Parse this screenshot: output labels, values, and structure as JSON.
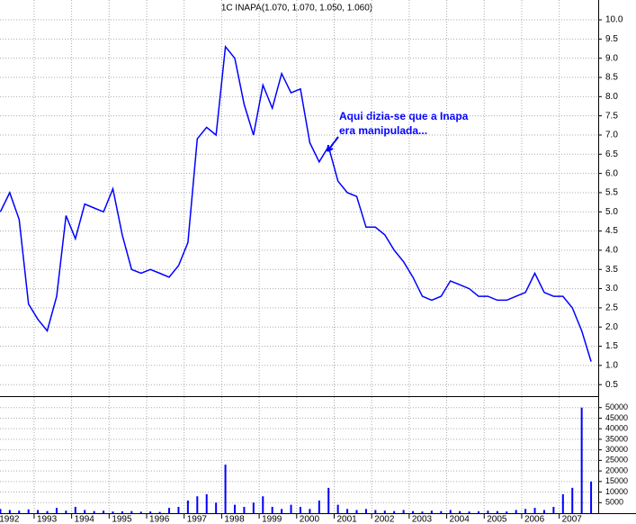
{
  "chart_data": [
    {
      "type": "line",
      "title": "1C INAPA(1.070, 1.070, 1.050, 1.060)",
      "annotation": [
        "Aqui dizia-se que a Inapa",
        "era manipulada..."
      ],
      "annotation_color": "#0000ff",
      "grid": true,
      "xlim": [
        1992.09,
        2008.04
      ],
      "xticks": [
        1992,
        1993,
        1994,
        1995,
        1996,
        1997,
        1998,
        1999,
        2000,
        2001,
        2002,
        2003,
        2004,
        2005,
        2006,
        2007
      ],
      "ylim": [
        0.2,
        10.5
      ],
      "yticks": [
        {
          "value": 0.5,
          "label": "0.5"
        },
        {
          "value": 1,
          "label": "1.0"
        },
        {
          "value": 1.5,
          "label": "1.5"
        },
        {
          "value": 2,
          "label": "2.0"
        },
        {
          "value": 2.5,
          "label": "2.5"
        },
        {
          "value": 3,
          "label": "3.0"
        },
        {
          "value": 3.5,
          "label": "3.5"
        },
        {
          "value": 4,
          "label": "4.0"
        },
        {
          "value": 4.5,
          "label": "4.5"
        },
        {
          "value": 5,
          "label": "5.0"
        },
        {
          "value": 5.5,
          "label": "5.5"
        },
        {
          "value": 6,
          "label": "6.0"
        },
        {
          "value": 6.5,
          "label": "6.5"
        },
        {
          "value": 7,
          "label": "7.0"
        },
        {
          "value": 7.5,
          "label": "7.5"
        },
        {
          "value": 8,
          "label": "8.0"
        },
        {
          "value": 8.5,
          "label": "8.5"
        },
        {
          "value": 9,
          "label": "9.0"
        },
        {
          "value": 9.5,
          "label": "9.5"
        },
        {
          "value": 10,
          "label": "10.0"
        }
      ],
      "x": [
        1992.1,
        1992.35,
        1992.6,
        1992.85,
        1993.1,
        1993.35,
        1993.6,
        1993.85,
        1994.1,
        1994.35,
        1994.6,
        1994.85,
        1995.1,
        1995.35,
        1995.6,
        1995.85,
        1996.1,
        1996.35,
        1996.6,
        1996.85,
        1997.1,
        1997.35,
        1997.6,
        1997.85,
        1998.1,
        1998.35,
        1998.6,
        1998.85,
        1999.1,
        1999.35,
        1999.6,
        1999.85,
        2000.1,
        2000.35,
        2000.6,
        2000.85,
        2001.1,
        2001.35,
        2001.6,
        2001.85,
        2002.1,
        2002.35,
        2002.6,
        2002.85,
        2003.1,
        2003.35,
        2003.6,
        2003.85,
        2004.1,
        2004.35,
        2004.6,
        2004.85,
        2005.1,
        2005.35,
        2005.6,
        2005.85,
        2006.1,
        2006.35,
        2006.6,
        2006.85,
        2007.1,
        2007.35,
        2007.6,
        2007.85
      ],
      "series": [
        {
          "color": "#0000ff",
          "values": [
            5.0,
            5.5,
            4.8,
            2.6,
            2.2,
            1.9,
            2.8,
            4.9,
            4.3,
            5.2,
            5.1,
            5.0,
            5.6,
            4.4,
            3.5,
            3.4,
            3.5,
            3.4,
            3.3,
            3.6,
            4.2,
            6.9,
            7.2,
            7.0,
            9.3,
            9.0,
            7.8,
            7.0,
            8.3,
            7.7,
            8.6,
            8.1,
            8.2,
            6.8,
            6.3,
            6.7,
            5.8,
            5.5,
            5.4,
            4.6,
            4.6,
            4.4,
            4.0,
            3.7,
            3.3,
            2.8,
            2.7,
            2.8,
            3.2,
            3.1,
            3.0,
            2.8,
            2.8,
            2.7,
            2.7,
            2.8,
            2.9,
            3.4,
            2.9,
            2.8,
            2.8,
            2.5,
            1.9,
            1.1
          ]
        }
      ]
    },
    {
      "type": "bar",
      "grid": true,
      "ylim": [
        0,
        55000
      ],
      "yticks": [
        5000,
        10000,
        15000,
        20000,
        25000,
        30000,
        35000,
        40000,
        45000,
        50000
      ],
      "series": [
        {
          "color": "#0000ff",
          "values": [
            2000,
            1500,
            1200,
            1800,
            1500,
            1000,
            2500,
            1200,
            3000,
            1500,
            1000,
            1200,
            800,
            900,
            1000,
            700,
            800,
            600,
            2500,
            3000,
            6000,
            8000,
            9000,
            5000,
            23000,
            4000,
            3000,
            5000,
            8000,
            3000,
            2000,
            4000,
            3000,
            2000,
            6000,
            12000,
            4000,
            2000,
            1500,
            2000,
            1500,
            1200,
            1000,
            1500,
            1000,
            800,
            1200,
            1000,
            1500,
            1000,
            800,
            900,
            1200,
            1000,
            800,
            1500,
            2000,
            2500,
            1500,
            3000,
            9000,
            12000,
            50000,
            15000
          ]
        }
      ]
    }
  ]
}
